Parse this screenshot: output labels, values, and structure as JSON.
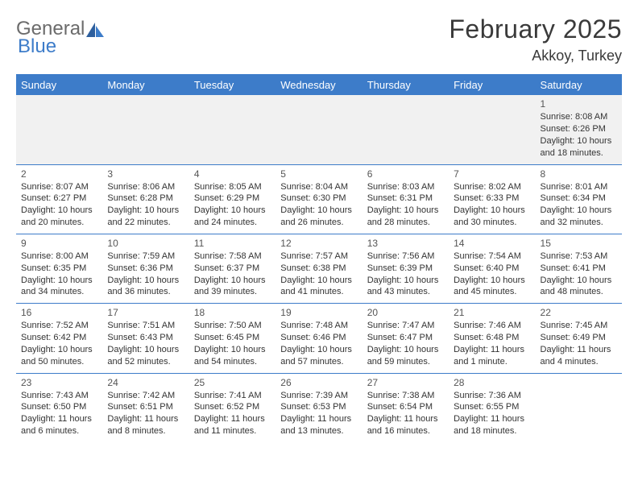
{
  "brand": {
    "part1": "General",
    "part2": "Blue"
  },
  "title": "February 2025",
  "subtitle": "Akkoy, Turkey",
  "colors": {
    "header_bg": "#3d7cc9",
    "header_text": "#ffffff",
    "border": "#3d7cc9",
    "firstrow_bg": "#f1f1f1",
    "body_text": "#333333",
    "title_text": "#3a3a3a",
    "logo_gray": "#6b6b6b",
    "logo_blue": "#3d7cc9"
  },
  "day_names": [
    "Sunday",
    "Monday",
    "Tuesday",
    "Wednesday",
    "Thursday",
    "Friday",
    "Saturday"
  ],
  "weeks": [
    [
      null,
      null,
      null,
      null,
      null,
      null,
      {
        "n": "1",
        "sr": "Sunrise: 8:08 AM",
        "ss": "Sunset: 6:26 PM",
        "dl1": "Daylight: 10 hours",
        "dl2": "and 18 minutes."
      }
    ],
    [
      {
        "n": "2",
        "sr": "Sunrise: 8:07 AM",
        "ss": "Sunset: 6:27 PM",
        "dl1": "Daylight: 10 hours",
        "dl2": "and 20 minutes."
      },
      {
        "n": "3",
        "sr": "Sunrise: 8:06 AM",
        "ss": "Sunset: 6:28 PM",
        "dl1": "Daylight: 10 hours",
        "dl2": "and 22 minutes."
      },
      {
        "n": "4",
        "sr": "Sunrise: 8:05 AM",
        "ss": "Sunset: 6:29 PM",
        "dl1": "Daylight: 10 hours",
        "dl2": "and 24 minutes."
      },
      {
        "n": "5",
        "sr": "Sunrise: 8:04 AM",
        "ss": "Sunset: 6:30 PM",
        "dl1": "Daylight: 10 hours",
        "dl2": "and 26 minutes."
      },
      {
        "n": "6",
        "sr": "Sunrise: 8:03 AM",
        "ss": "Sunset: 6:31 PM",
        "dl1": "Daylight: 10 hours",
        "dl2": "and 28 minutes."
      },
      {
        "n": "7",
        "sr": "Sunrise: 8:02 AM",
        "ss": "Sunset: 6:33 PM",
        "dl1": "Daylight: 10 hours",
        "dl2": "and 30 minutes."
      },
      {
        "n": "8",
        "sr": "Sunrise: 8:01 AM",
        "ss": "Sunset: 6:34 PM",
        "dl1": "Daylight: 10 hours",
        "dl2": "and 32 minutes."
      }
    ],
    [
      {
        "n": "9",
        "sr": "Sunrise: 8:00 AM",
        "ss": "Sunset: 6:35 PM",
        "dl1": "Daylight: 10 hours",
        "dl2": "and 34 minutes."
      },
      {
        "n": "10",
        "sr": "Sunrise: 7:59 AM",
        "ss": "Sunset: 6:36 PM",
        "dl1": "Daylight: 10 hours",
        "dl2": "and 36 minutes."
      },
      {
        "n": "11",
        "sr": "Sunrise: 7:58 AM",
        "ss": "Sunset: 6:37 PM",
        "dl1": "Daylight: 10 hours",
        "dl2": "and 39 minutes."
      },
      {
        "n": "12",
        "sr": "Sunrise: 7:57 AM",
        "ss": "Sunset: 6:38 PM",
        "dl1": "Daylight: 10 hours",
        "dl2": "and 41 minutes."
      },
      {
        "n": "13",
        "sr": "Sunrise: 7:56 AM",
        "ss": "Sunset: 6:39 PM",
        "dl1": "Daylight: 10 hours",
        "dl2": "and 43 minutes."
      },
      {
        "n": "14",
        "sr": "Sunrise: 7:54 AM",
        "ss": "Sunset: 6:40 PM",
        "dl1": "Daylight: 10 hours",
        "dl2": "and 45 minutes."
      },
      {
        "n": "15",
        "sr": "Sunrise: 7:53 AM",
        "ss": "Sunset: 6:41 PM",
        "dl1": "Daylight: 10 hours",
        "dl2": "and 48 minutes."
      }
    ],
    [
      {
        "n": "16",
        "sr": "Sunrise: 7:52 AM",
        "ss": "Sunset: 6:42 PM",
        "dl1": "Daylight: 10 hours",
        "dl2": "and 50 minutes."
      },
      {
        "n": "17",
        "sr": "Sunrise: 7:51 AM",
        "ss": "Sunset: 6:43 PM",
        "dl1": "Daylight: 10 hours",
        "dl2": "and 52 minutes."
      },
      {
        "n": "18",
        "sr": "Sunrise: 7:50 AM",
        "ss": "Sunset: 6:45 PM",
        "dl1": "Daylight: 10 hours",
        "dl2": "and 54 minutes."
      },
      {
        "n": "19",
        "sr": "Sunrise: 7:48 AM",
        "ss": "Sunset: 6:46 PM",
        "dl1": "Daylight: 10 hours",
        "dl2": "and 57 minutes."
      },
      {
        "n": "20",
        "sr": "Sunrise: 7:47 AM",
        "ss": "Sunset: 6:47 PM",
        "dl1": "Daylight: 10 hours",
        "dl2": "and 59 minutes."
      },
      {
        "n": "21",
        "sr": "Sunrise: 7:46 AM",
        "ss": "Sunset: 6:48 PM",
        "dl1": "Daylight: 11 hours",
        "dl2": "and 1 minute."
      },
      {
        "n": "22",
        "sr": "Sunrise: 7:45 AM",
        "ss": "Sunset: 6:49 PM",
        "dl1": "Daylight: 11 hours",
        "dl2": "and 4 minutes."
      }
    ],
    [
      {
        "n": "23",
        "sr": "Sunrise: 7:43 AM",
        "ss": "Sunset: 6:50 PM",
        "dl1": "Daylight: 11 hours",
        "dl2": "and 6 minutes."
      },
      {
        "n": "24",
        "sr": "Sunrise: 7:42 AM",
        "ss": "Sunset: 6:51 PM",
        "dl1": "Daylight: 11 hours",
        "dl2": "and 8 minutes."
      },
      {
        "n": "25",
        "sr": "Sunrise: 7:41 AM",
        "ss": "Sunset: 6:52 PM",
        "dl1": "Daylight: 11 hours",
        "dl2": "and 11 minutes."
      },
      {
        "n": "26",
        "sr": "Sunrise: 7:39 AM",
        "ss": "Sunset: 6:53 PM",
        "dl1": "Daylight: 11 hours",
        "dl2": "and 13 minutes."
      },
      {
        "n": "27",
        "sr": "Sunrise: 7:38 AM",
        "ss": "Sunset: 6:54 PM",
        "dl1": "Daylight: 11 hours",
        "dl2": "and 16 minutes."
      },
      {
        "n": "28",
        "sr": "Sunrise: 7:36 AM",
        "ss": "Sunset: 6:55 PM",
        "dl1": "Daylight: 11 hours",
        "dl2": "and 18 minutes."
      },
      null
    ]
  ]
}
